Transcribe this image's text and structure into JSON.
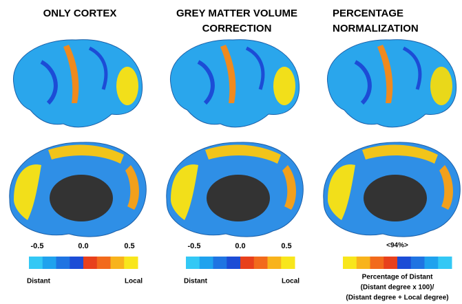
{
  "panels": [
    {
      "title_lines": [
        "ONLY CORTEX"
      ],
      "colorbar": {
        "colors": [
          "#33c8f5",
          "#1fa2ee",
          "#1f74e2",
          "#1c4cd6",
          "#e8401c",
          "#f26a1c",
          "#f8b31c",
          "#f8e61c"
        ],
        "ticks": [
          "-0.5",
          "0.0",
          "0.5"
        ],
        "left_label": "Distant",
        "right_label": "Local"
      }
    },
    {
      "title_lines": [
        "GREY MATTER VOLUME",
        "CORRECTION"
      ],
      "colorbar": {
        "colors": [
          "#33c8f5",
          "#1fa2ee",
          "#1f74e2",
          "#1c4cd6",
          "#e8401c",
          "#f26a1c",
          "#f8b31c",
          "#f8e61c"
        ],
        "ticks": [
          "-0.5",
          "0.0",
          "0.5"
        ],
        "left_label": "Distant",
        "right_label": "Local"
      }
    },
    {
      "title_lines": [
        "PERCENTAGE",
        "NORMALIZATION"
      ],
      "colorbar": {
        "colors": [
          "#f8e61c",
          "#f8b31c",
          "#f26a1c",
          "#e8401c",
          "#1c4cd6",
          "#1f74e2",
          "#1fa2ee",
          "#33c8f5"
        ],
        "center_label": "<94%>",
        "caption_lines": [
          "Percentage of Distant",
          "(Distant degree x 100)/",
          "(Distant degree + Local degree)"
        ]
      }
    }
  ]
}
